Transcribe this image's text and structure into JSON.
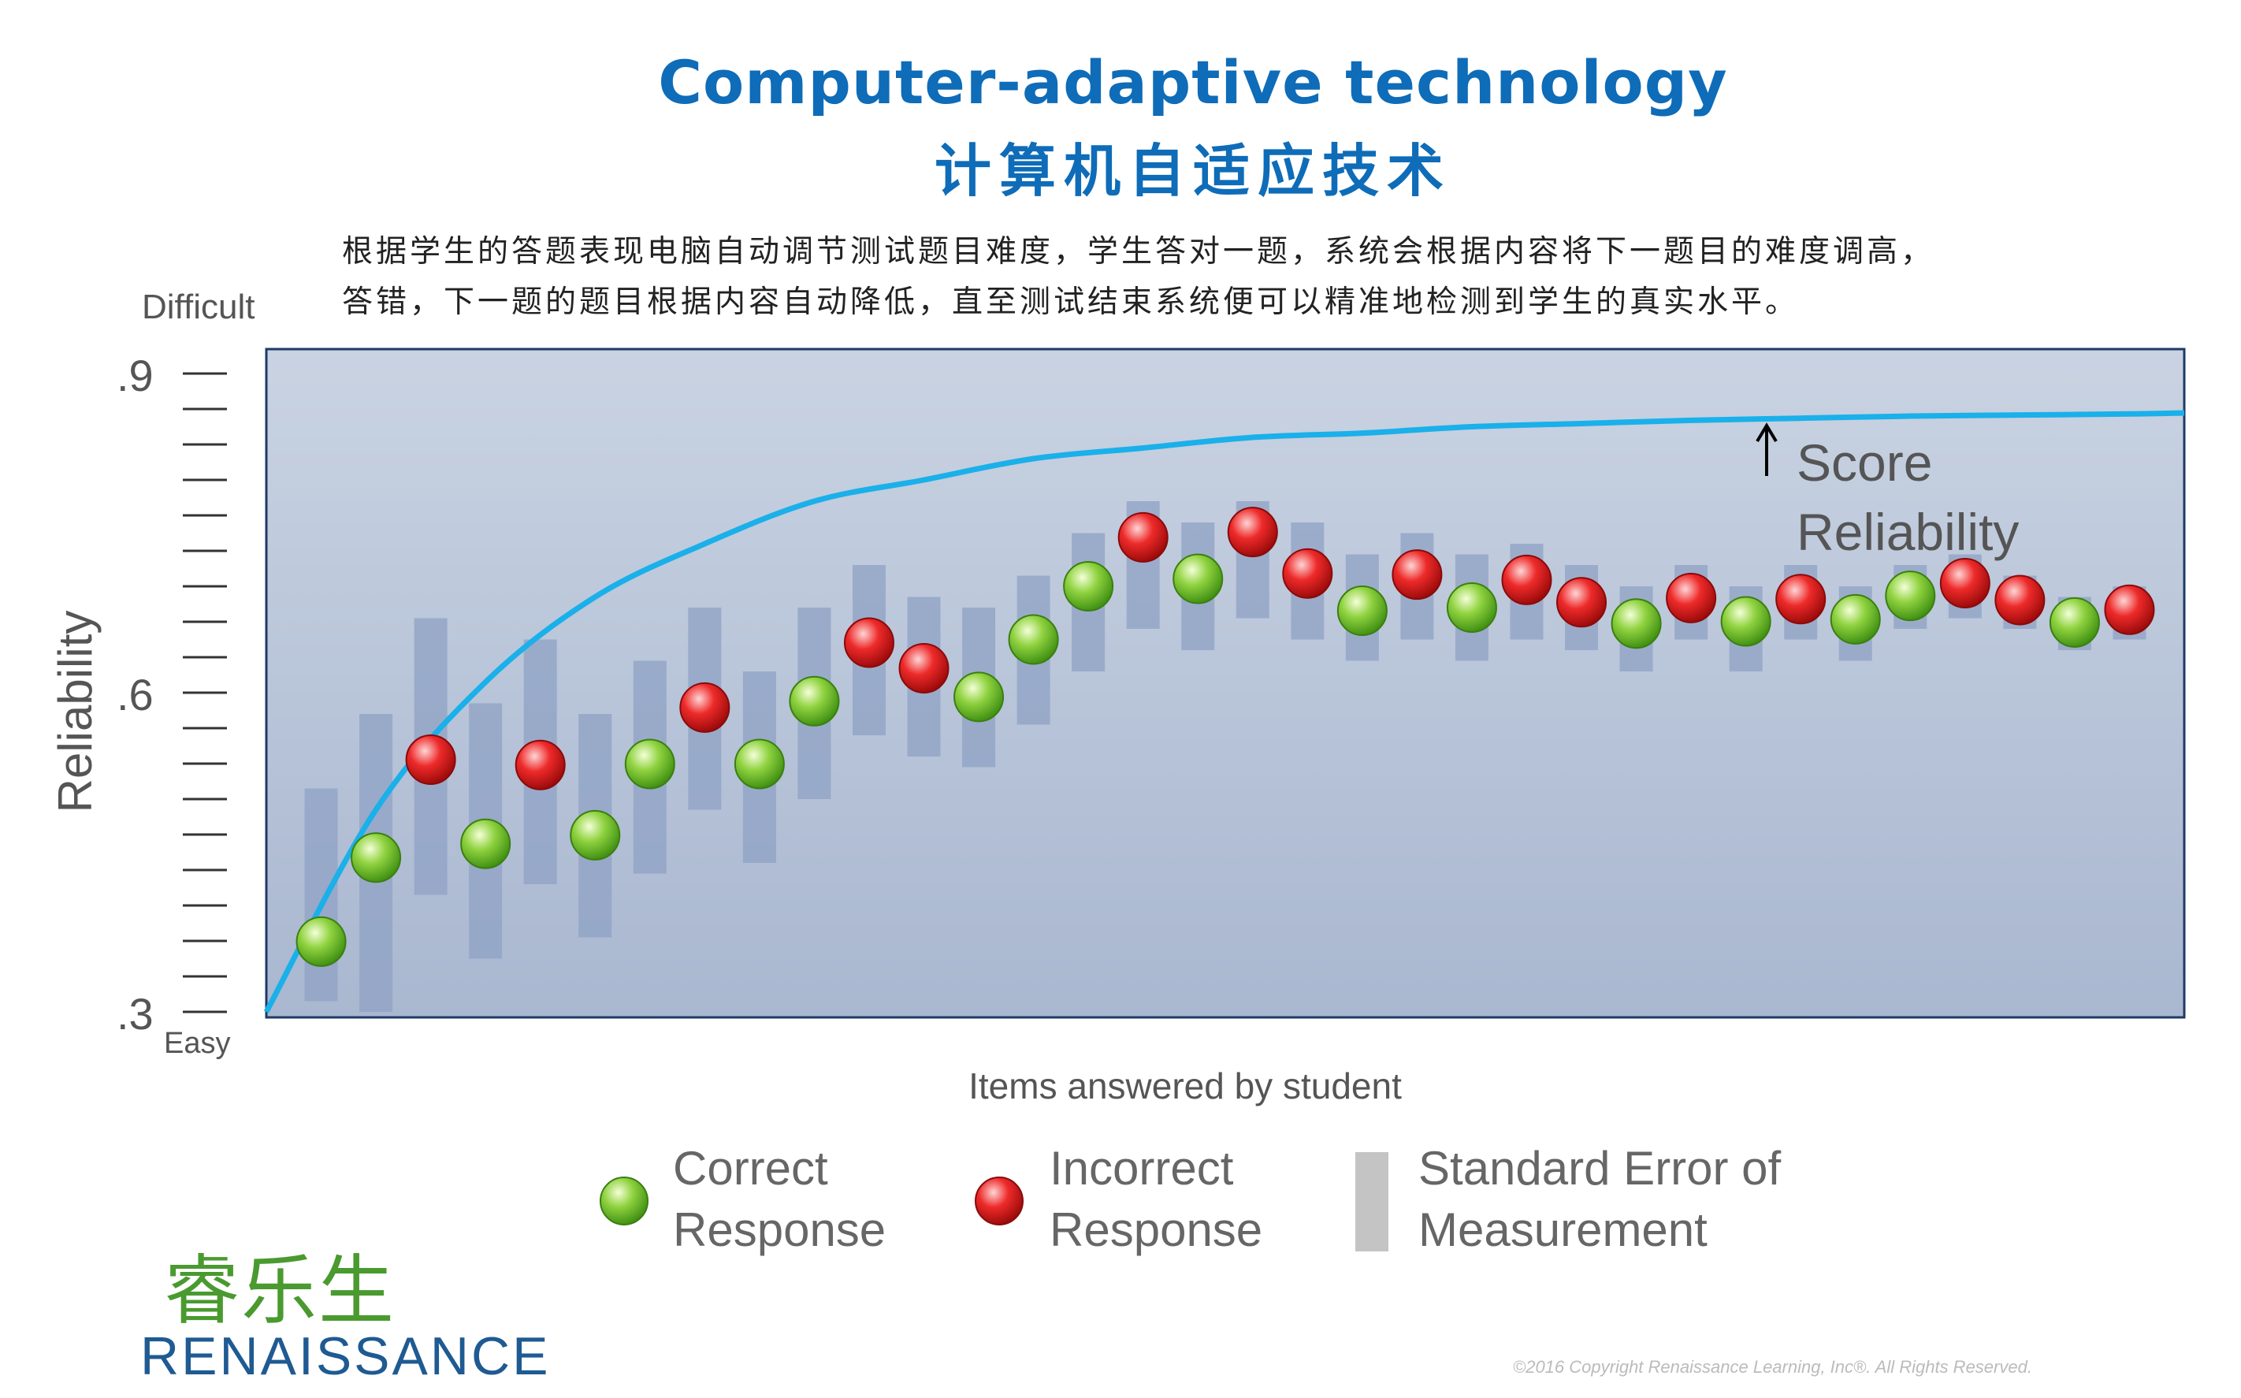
{
  "header": {
    "title_en": "Computer-adaptive technology",
    "title_zh": "计算机自适应技术",
    "desc_line1": "根据学生的答题表现电脑自动调节测试题目难度，学生答对一题，系统会根据内容将下一题目的难度调高，",
    "desc_line2": "答错，下一题的题目根据内容自动降低，直至测试结束系统便可以精准地检测到学生的真实水平。"
  },
  "chart_data": {
    "type": "scatter",
    "ylabel": "Reliability",
    "xlabel": "Items answered by student",
    "y_top_label": "Difficult",
    "y_bottom_label": "Easy",
    "y_ticks": [
      ".9",
      ".6",
      ".3"
    ],
    "ylim": [
      0.3,
      0.9
    ],
    "curve_label_1": "Score",
    "curve_label_2": "Reliability",
    "curve": {
      "x": [
        0,
        2,
        4,
        6,
        8,
        10,
        12,
        14,
        16,
        18,
        20,
        22,
        24,
        26,
        28,
        30,
        32,
        34,
        35
      ],
      "y": [
        0.3,
        0.49,
        0.61,
        0.69,
        0.74,
        0.78,
        0.8,
        0.82,
        0.83,
        0.84,
        0.844,
        0.85,
        0.853,
        0.856,
        0.858,
        0.86,
        0.861,
        0.862,
        0.863
      ]
    },
    "items": [
      {
        "x": 1,
        "y": 0.366,
        "correct": true,
        "sem_low": 0.31,
        "sem_high": 0.51
      },
      {
        "x": 2,
        "y": 0.445,
        "correct": true,
        "sem_low": 0.3,
        "sem_high": 0.58
      },
      {
        "x": 3,
        "y": 0.537,
        "correct": false,
        "sem_low": 0.41,
        "sem_high": 0.67
      },
      {
        "x": 4,
        "y": 0.458,
        "correct": true,
        "sem_low": 0.35,
        "sem_high": 0.59
      },
      {
        "x": 5,
        "y": 0.532,
        "correct": false,
        "sem_low": 0.42,
        "sem_high": 0.65
      },
      {
        "x": 6,
        "y": 0.466,
        "correct": true,
        "sem_low": 0.37,
        "sem_high": 0.58
      },
      {
        "x": 7,
        "y": 0.533,
        "correct": true,
        "sem_low": 0.43,
        "sem_high": 0.63
      },
      {
        "x": 8,
        "y": 0.586,
        "correct": false,
        "sem_low": 0.49,
        "sem_high": 0.68
      },
      {
        "x": 9,
        "y": 0.533,
        "correct": true,
        "sem_low": 0.44,
        "sem_high": 0.62
      },
      {
        "x": 10,
        "y": 0.592,
        "correct": true,
        "sem_low": 0.5,
        "sem_high": 0.68
      },
      {
        "x": 11,
        "y": 0.647,
        "correct": false,
        "sem_low": 0.56,
        "sem_high": 0.72
      },
      {
        "x": 12,
        "y": 0.623,
        "correct": false,
        "sem_low": 0.54,
        "sem_high": 0.69
      },
      {
        "x": 13,
        "y": 0.596,
        "correct": true,
        "sem_low": 0.53,
        "sem_high": 0.68
      },
      {
        "x": 14,
        "y": 0.65,
        "correct": true,
        "sem_low": 0.57,
        "sem_high": 0.71
      },
      {
        "x": 15,
        "y": 0.7,
        "correct": true,
        "sem_low": 0.62,
        "sem_high": 0.75
      },
      {
        "x": 16,
        "y": 0.746,
        "correct": false,
        "sem_low": 0.66,
        "sem_high": 0.78
      },
      {
        "x": 17,
        "y": 0.707,
        "correct": true,
        "sem_low": 0.64,
        "sem_high": 0.76
      },
      {
        "x": 18,
        "y": 0.751,
        "correct": false,
        "sem_low": 0.67,
        "sem_high": 0.78
      },
      {
        "x": 19,
        "y": 0.712,
        "correct": false,
        "sem_low": 0.65,
        "sem_high": 0.76
      },
      {
        "x": 20,
        "y": 0.677,
        "correct": true,
        "sem_low": 0.63,
        "sem_high": 0.73
      },
      {
        "x": 21,
        "y": 0.711,
        "correct": false,
        "sem_low": 0.65,
        "sem_high": 0.75
      },
      {
        "x": 22,
        "y": 0.68,
        "correct": true,
        "sem_low": 0.63,
        "sem_high": 0.73
      },
      {
        "x": 23,
        "y": 0.706,
        "correct": false,
        "sem_low": 0.65,
        "sem_high": 0.74
      },
      {
        "x": 24,
        "y": 0.685,
        "correct": false,
        "sem_low": 0.64,
        "sem_high": 0.72
      },
      {
        "x": 25,
        "y": 0.665,
        "correct": true,
        "sem_low": 0.62,
        "sem_high": 0.7
      },
      {
        "x": 26,
        "y": 0.689,
        "correct": false,
        "sem_low": 0.65,
        "sem_high": 0.72
      },
      {
        "x": 27,
        "y": 0.667,
        "correct": true,
        "sem_low": 0.62,
        "sem_high": 0.7
      },
      {
        "x": 28,
        "y": 0.688,
        "correct": false,
        "sem_low": 0.65,
        "sem_high": 0.72
      },
      {
        "x": 29,
        "y": 0.669,
        "correct": true,
        "sem_low": 0.63,
        "sem_high": 0.7
      },
      {
        "x": 30,
        "y": 0.691,
        "correct": true,
        "sem_low": 0.66,
        "sem_high": 0.72
      },
      {
        "x": 31,
        "y": 0.703,
        "correct": false,
        "sem_low": 0.67,
        "sem_high": 0.73
      },
      {
        "x": 32,
        "y": 0.687,
        "correct": false,
        "sem_low": 0.66,
        "sem_high": 0.71
      },
      {
        "x": 33,
        "y": 0.666,
        "correct": true,
        "sem_low": 0.64,
        "sem_high": 0.69
      },
      {
        "x": 34,
        "y": 0.678,
        "correct": false,
        "sem_low": 0.65,
        "sem_high": 0.7
      }
    ],
    "legend": [
      {
        "line1": "Correct",
        "line2": "Response",
        "color": "#6cc02a"
      },
      {
        "line1": "Incorrect",
        "line2": "Response",
        "color": "#e01b1b"
      },
      {
        "line1": "Standard Error of",
        "line2": "Measurement",
        "color": "#c4c4c4"
      }
    ],
    "colors": {
      "curve": "#1ab0ea",
      "plot_bg_top": "#c9d3e2",
      "plot_bg_bottom": "#a9b7d0",
      "sem_bar": "#8fa2c4"
    }
  },
  "logo": {
    "zh": "睿乐生",
    "en": "RENAISSANCE"
  },
  "copyright": "©2016 Copyright Renaissance Learning, Inc®. All Rights Reserved."
}
